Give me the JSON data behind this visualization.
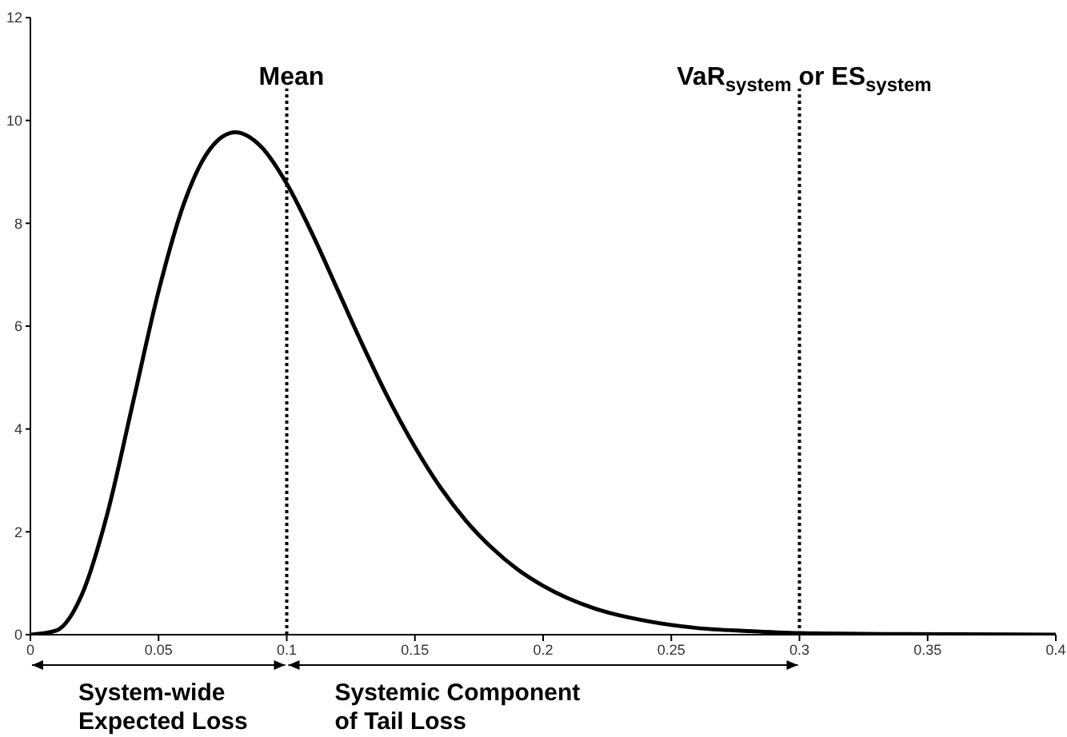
{
  "chart_data": {
    "type": "line",
    "x": [
      0,
      0.01,
      0.02,
      0.03,
      0.04,
      0.05,
      0.06,
      0.07,
      0.08,
      0.09,
      0.1,
      0.11,
      0.12,
      0.13,
      0.14,
      0.15,
      0.16,
      0.17,
      0.18,
      0.19,
      0.2,
      0.22,
      0.24,
      0.26,
      0.28,
      0.3,
      0.34,
      0.4
    ],
    "series": [
      {
        "color": "#000000",
        "values": [
          0,
          0.08,
          0.77,
          2.35,
          4.51,
          6.68,
          8.4,
          9.44,
          9.77,
          9.49,
          8.77,
          7.79,
          6.69,
          5.59,
          4.56,
          3.65,
          2.86,
          2.21,
          1.69,
          1.27,
          0.95,
          0.51,
          0.27,
          0.13,
          0.07,
          0.03,
          0.01,
          0
        ]
      }
    ],
    "xlim": [
      0,
      0.4
    ],
    "xticks": [
      0,
      0.05,
      0.1,
      0.15,
      0.2,
      0.25,
      0.3,
      0.35,
      0.4
    ],
    "ylim": [
      0,
      12
    ],
    "yticks": [
      0,
      2,
      4,
      6,
      8,
      10,
      12
    ],
    "marker": "none",
    "line_style": "solid",
    "ref_lines": [
      {
        "axis": "x",
        "value": 0.1,
        "label": "Mean",
        "color": "#000000",
        "line_style": "dotted"
      },
      {
        "axis": "x",
        "value": 0.3,
        "label": "VaR$_{system}$ or ES$_{system}$",
        "color": "#000000",
        "line_style": "dotted"
      }
    ],
    "annotations": [
      "System-wide\nExpected Loss",
      "Systemic Component\nof Tail Loss"
    ]
  }
}
